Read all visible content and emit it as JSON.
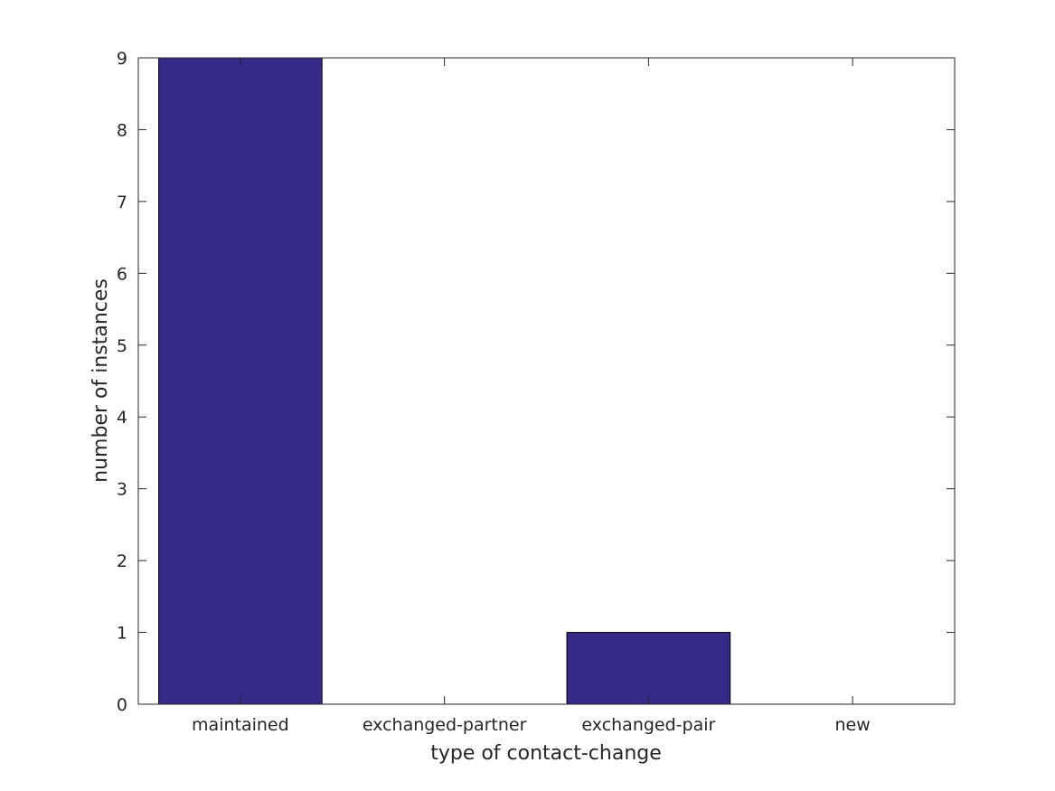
{
  "chart_data": {
    "type": "bar",
    "categories": [
      "maintained",
      "exchanged-partner",
      "exchanged-pair",
      "new"
    ],
    "values": [
      9,
      0,
      1,
      0
    ],
    "xlabel": "type of contact-change",
    "ylabel": "number of instances",
    "ylim": [
      0,
      9
    ],
    "yticks": [
      0,
      1,
      2,
      3,
      4,
      5,
      6,
      7,
      8,
      9
    ],
    "bar_color": "#352a87",
    "grid": false,
    "legend": "none"
  }
}
